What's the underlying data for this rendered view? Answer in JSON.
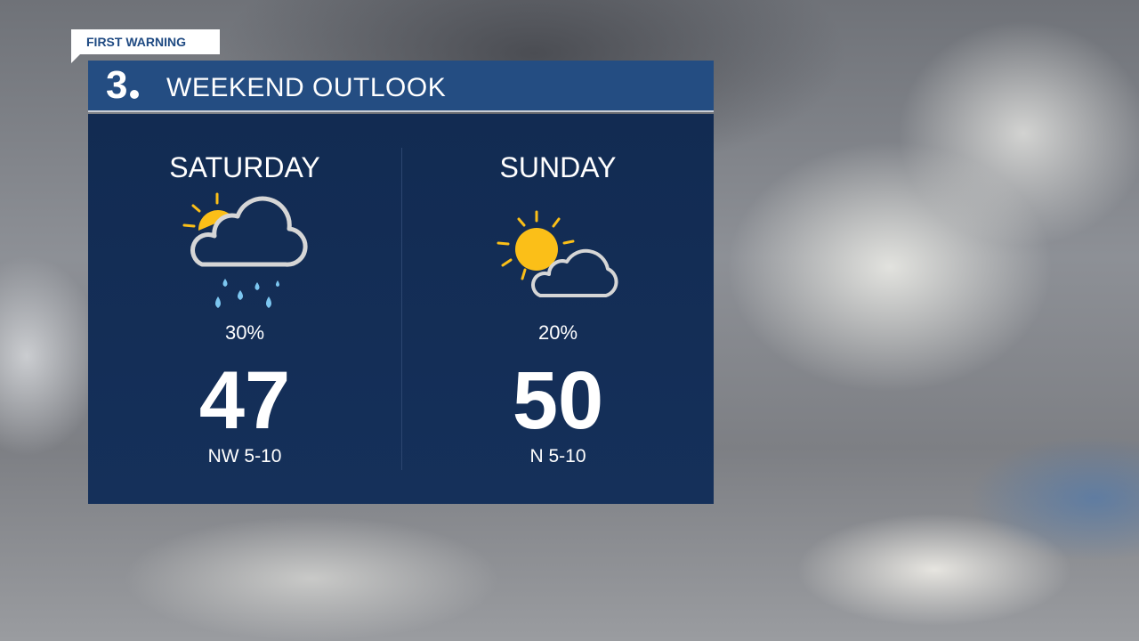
{
  "badge": "FIRST WARNING",
  "header": {
    "logo": "3",
    "title": "WEEKEND OUTLOOK"
  },
  "days": [
    {
      "name": "SATURDAY",
      "icon": "partly-sunny-rain-icon",
      "precip": "30%",
      "high": "47",
      "wind": "NW 5-10"
    },
    {
      "name": "SUNDAY",
      "icon": "mostly-sunny-icon",
      "precip": "20%",
      "high": "50",
      "wind": "N 5-10"
    }
  ],
  "colors": {
    "header": "#244d82",
    "panel": "#132d55",
    "sun": "#fbbf18",
    "rain": "#7cc6f0",
    "cloud": "#d6d6d6"
  }
}
